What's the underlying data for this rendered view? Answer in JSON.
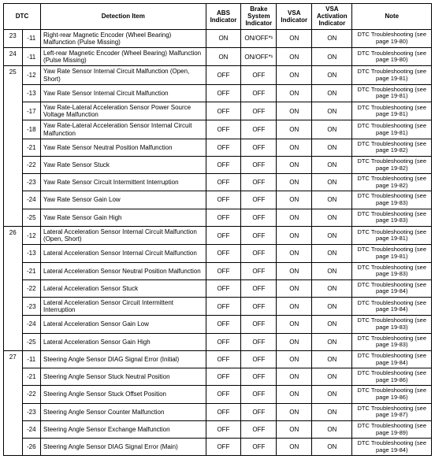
{
  "columns": [
    "DTC",
    "Detection Item",
    "ABS Indicator",
    "Brake System Indicator",
    "VSA Indicator",
    "VSA Activation Indicator",
    "Note"
  ],
  "rows": [
    {
      "dtc1": "23",
      "dtc2": "-11",
      "det": "Right-rear Magnetic Encoder (Wheel Bearing) Malfunction (Pulse Missing)",
      "abs": "ON",
      "brk": "ON/OFF*¹",
      "vsa": "ON",
      "act": "ON",
      "note": "DTC Troubleshooting (see page 19-80)"
    },
    {
      "dtc1": "24",
      "dtc2": "-11",
      "det": "Left-rear Magnetic Encoder (Wheel Bearing) Malfunction (Pulse Missing)",
      "abs": "ON",
      "brk": "ON/OFF*¹",
      "vsa": "ON",
      "act": "ON",
      "note": "DTC Troubleshooting (see page 19-80)"
    },
    {
      "dtc1": "25",
      "dtc2": "-12",
      "det": "Yaw Rate Sensor Internal Circuit Malfunction (Open, Short)",
      "abs": "OFF",
      "brk": "OFF",
      "vsa": "ON",
      "act": "ON",
      "note": "DTC Troubleshooting (see page 19-81)"
    },
    {
      "dtc1": "",
      "dtc2": "-13",
      "det": "Yaw Rate Sensor Internal Circuit Malfunction",
      "abs": "OFF",
      "brk": "OFF",
      "vsa": "ON",
      "act": "ON",
      "note": "DTC Troubleshooting (see page 19-81)"
    },
    {
      "dtc1": "",
      "dtc2": "-17",
      "det": "Yaw Rate-Lateral Acceleration Sensor Power Source Voltage Malfunction",
      "abs": "OFF",
      "brk": "OFF",
      "vsa": "ON",
      "act": "ON",
      "note": "DTC Troubleshooting (see page 19-81)"
    },
    {
      "dtc1": "",
      "dtc2": "-18",
      "det": "Yaw Rate-Lateral Acceleration Sensor Internal Circuit Malfunction",
      "abs": "OFF",
      "brk": "OFF",
      "vsa": "ON",
      "act": "ON",
      "note": "DTC Troubleshooting (see page 19-81)"
    },
    {
      "dtc1": "",
      "dtc2": "-21",
      "det": "Yaw Rate Sensor Neutral Position Malfunction",
      "abs": "OFF",
      "brk": "OFF",
      "vsa": "ON",
      "act": "ON",
      "note": "DTC Troubleshooting (see page 19-82)"
    },
    {
      "dtc1": "",
      "dtc2": "-22",
      "det": "Yaw Rate Sensor Stuck",
      "abs": "OFF",
      "brk": "OFF",
      "vsa": "ON",
      "act": "ON",
      "note": "DTC Troubleshooting (see page 19-82)"
    },
    {
      "dtc1": "",
      "dtc2": "-23",
      "det": "Yaw Rate Sensor Circuit Intermittent Interruption",
      "abs": "OFF",
      "brk": "OFF",
      "vsa": "ON",
      "act": "ON",
      "note": "DTC Troubleshooting (see page 19-82)"
    },
    {
      "dtc1": "",
      "dtc2": "-24",
      "det": "Yaw Rate Sensor Gain Low",
      "abs": "OFF",
      "brk": "OFF",
      "vsa": "ON",
      "act": "ON",
      "note": "DTC Troubleshooting (see page 19-83)"
    },
    {
      "dtc1": "",
      "dtc2": "-25",
      "det": "Yaw Rate Sensor Gain High",
      "abs": "OFF",
      "brk": "OFF",
      "vsa": "ON",
      "act": "ON",
      "note": "DTC Troubleshooting (see page 19-83)"
    },
    {
      "dtc1": "26",
      "dtc2": "-12",
      "det": "Lateral Acceleration Sensor Internal Circuit Malfunction (Open, Short)",
      "abs": "OFF",
      "brk": "OFF",
      "vsa": "ON",
      "act": "ON",
      "note": "DTC Troubleshooting (see page 19-81)"
    },
    {
      "dtc1": "",
      "dtc2": "-13",
      "det": "Lateral Acceleration Sensor Internal Circuit Malfunction",
      "abs": "OFF",
      "brk": "OFF",
      "vsa": "ON",
      "act": "ON",
      "note": "DTC Troubleshooting (see page 19-81)"
    },
    {
      "dtc1": "",
      "dtc2": "-21",
      "det": "Lateral Acceleration Sensor Neutral Position Malfunction",
      "abs": "OFF",
      "brk": "OFF",
      "vsa": "ON",
      "act": "ON",
      "note": "DTC Troubleshooting (see page 19-83)"
    },
    {
      "dtc1": "",
      "dtc2": "-22",
      "det": "Lateral Acceleration Sensor Stuck",
      "abs": "OFF",
      "brk": "OFF",
      "vsa": "ON",
      "act": "ON",
      "note": "DTC Troubleshooting (see page 19-84)"
    },
    {
      "dtc1": "",
      "dtc2": "-23",
      "det": "Lateral Acceleration Sensor Circuit Intermittent Interruption",
      "abs": "OFF",
      "brk": "OFF",
      "vsa": "ON",
      "act": "ON",
      "note": "DTC Troubleshooting (see page 19-84)"
    },
    {
      "dtc1": "",
      "dtc2": "-24",
      "det": "Lateral Acceleration Sensor Gain Low",
      "abs": "OFF",
      "brk": "OFF",
      "vsa": "ON",
      "act": "ON",
      "note": "DTC Troubleshooting (see page 19-83)"
    },
    {
      "dtc1": "",
      "dtc2": "-25",
      "det": "Lateral Acceleration Sensor Gain High",
      "abs": "OFF",
      "brk": "OFF",
      "vsa": "ON",
      "act": "ON",
      "note": "DTC Troubleshooting (see page 19-83)"
    },
    {
      "dtc1": "27",
      "dtc2": "-11",
      "det": "Steering Angle Sensor DIAG Signal Error (Initial)",
      "abs": "OFF",
      "brk": "OFF",
      "vsa": "ON",
      "act": "ON",
      "note": "DTC Troubleshooting (see page 19-84)"
    },
    {
      "dtc1": "",
      "dtc2": "-21",
      "det": "Steering Angle Sensor Stuck Neutral Position",
      "abs": "OFF",
      "brk": "OFF",
      "vsa": "ON",
      "act": "ON",
      "note": "DTC Troubleshooting (see page 19-86)"
    },
    {
      "dtc1": "",
      "dtc2": "-22",
      "det": "Steering Angle Sensor Stuck Offset Position",
      "abs": "OFF",
      "brk": "OFF",
      "vsa": "ON",
      "act": "ON",
      "note": "DTC Troubleshooting (see page 19-86)"
    },
    {
      "dtc1": "",
      "dtc2": "-23",
      "det": "Steering Angle Sensor Counter Malfunction",
      "abs": "OFF",
      "brk": "OFF",
      "vsa": "ON",
      "act": "ON",
      "note": "DTC Troubleshooting (see page 19-87)"
    },
    {
      "dtc1": "",
      "dtc2": "-24",
      "det": "Steering Angle Sensor Exchange Malfunction",
      "abs": "OFF",
      "brk": "OFF",
      "vsa": "ON",
      "act": "ON",
      "note": "DTC Troubleshooting (see page 19-89)"
    },
    {
      "dtc1": "",
      "dtc2": "-26",
      "det": "Steering Angle Sensor DIAG Signal Error (Main)",
      "abs": "OFF",
      "brk": "OFF",
      "vsa": "ON",
      "act": "ON",
      "note": "DTC Troubleshooting (see page 19-84)"
    }
  ],
  "groups": [
    {
      "start": 0,
      "len": 1
    },
    {
      "start": 1,
      "len": 1
    },
    {
      "start": 2,
      "len": 9
    },
    {
      "start": 11,
      "len": 7
    },
    {
      "start": 18,
      "len": 6
    }
  ]
}
